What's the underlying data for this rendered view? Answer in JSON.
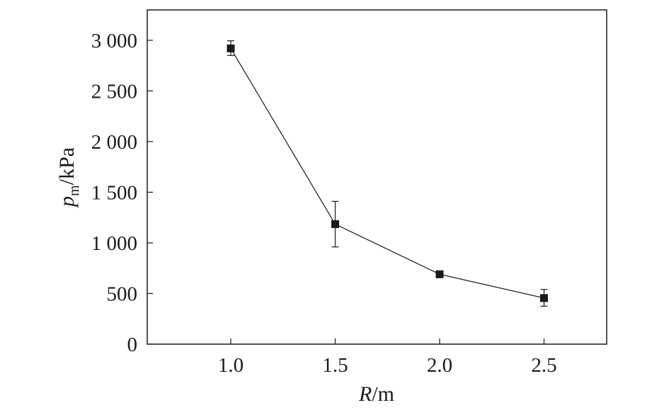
{
  "chart_data": {
    "type": "line",
    "xlabel_main": "R",
    "xlabel_unit": "/m",
    "ylabel_main": "p",
    "ylabel_sub": "m",
    "ylabel_unit": "/kPa",
    "xlim": [
      0.6,
      2.8
    ],
    "ylim": [
      0,
      3300
    ],
    "xticks": [
      1.0,
      1.5,
      2.0,
      2.5
    ],
    "xtick_labels": [
      "1.0",
      "1.5",
      "2.0",
      "2.5"
    ],
    "yticks": [
      0,
      500,
      1000,
      1500,
      2000,
      2500,
      3000
    ],
    "ytick_labels": [
      "0",
      "500",
      "1 000",
      "1 500",
      "2 000",
      "2 500",
      "3 000"
    ],
    "grid": false,
    "marker": "square",
    "line_color": "#1a1a1a",
    "series": [
      {
        "x": [
          1.0,
          1.5,
          2.0,
          2.5
        ],
        "y": [
          2920,
          1185,
          690,
          455
        ],
        "err_low": [
          70,
          225,
          25,
          80
        ],
        "err_high": [
          75,
          225,
          25,
          85
        ]
      }
    ]
  }
}
